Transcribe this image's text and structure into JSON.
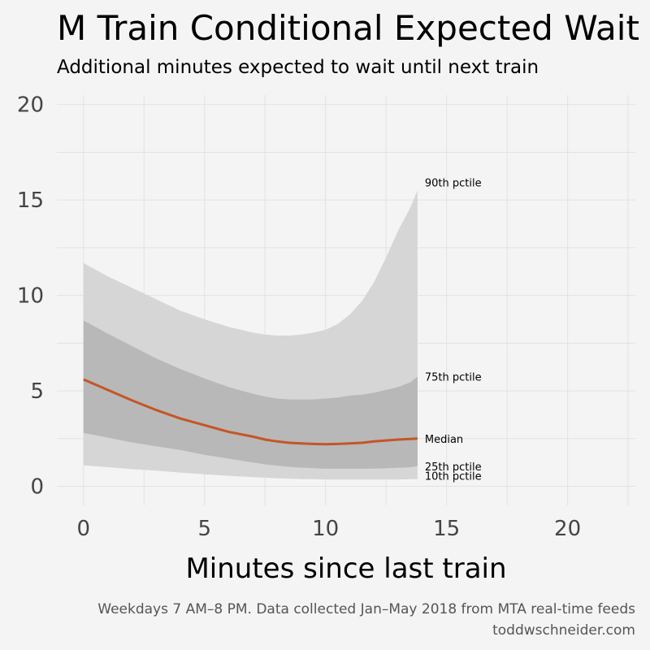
{
  "title": "M Train Conditional Expected Wait",
  "subtitle": "Additional minutes expected to wait until next train",
  "caption_line1": "Weekdays 7 AM–8 PM. Data collected Jan–May 2018 from MTA real-time feeds",
  "caption_line2": "toddwschneider.com",
  "chart_data": {
    "type": "area",
    "xlabel": "Minutes since last train",
    "ylabel": "",
    "xlim": [
      -1.1,
      22.8
    ],
    "ylim": [
      -1,
      20.5
    ],
    "x_ticks": [
      0,
      5,
      10,
      15,
      20
    ],
    "y_ticks": [
      0,
      5,
      10,
      15,
      20
    ],
    "grid": true,
    "colors": {
      "outer_band": "#d6d6d6",
      "inner_band": "#b8b8b8",
      "median": "#c55527",
      "background": "#f4f4f4",
      "grid": "#e2e2e2"
    },
    "x": [
      0,
      1,
      2,
      3,
      4,
      5,
      6,
      7,
      7.5,
      8,
      8.5,
      9,
      9.5,
      10,
      10.5,
      11,
      11.5,
      12,
      12.5,
      13,
      13.5,
      13.8
    ],
    "series": [
      {
        "name": "90th pctile",
        "values": [
          11.7,
          11.0,
          10.4,
          9.8,
          9.2,
          8.75,
          8.35,
          8.05,
          7.95,
          7.9,
          7.9,
          7.95,
          8.05,
          8.2,
          8.5,
          9.0,
          9.7,
          10.7,
          12.0,
          13.4,
          14.6,
          15.5
        ]
      },
      {
        "name": "75th pctile",
        "values": [
          8.7,
          8.0,
          7.35,
          6.7,
          6.15,
          5.65,
          5.2,
          4.85,
          4.7,
          4.6,
          4.55,
          4.55,
          4.55,
          4.6,
          4.65,
          4.75,
          4.8,
          4.9,
          5.05,
          5.2,
          5.45,
          5.75
        ]
      },
      {
        "name": "Median",
        "values": [
          5.6,
          5.05,
          4.5,
          4.0,
          3.55,
          3.2,
          2.85,
          2.6,
          2.45,
          2.35,
          2.28,
          2.25,
          2.22,
          2.2,
          2.22,
          2.25,
          2.28,
          2.35,
          2.4,
          2.45,
          2.48,
          2.5
        ]
      },
      {
        "name": "25th pctile",
        "values": [
          2.8,
          2.55,
          2.3,
          2.1,
          1.9,
          1.65,
          1.45,
          1.25,
          1.15,
          1.08,
          1.02,
          0.98,
          0.95,
          0.92,
          0.92,
          0.92,
          0.92,
          0.93,
          0.95,
          0.97,
          1.0,
          1.05
        ]
      },
      {
        "name": "10th pctile",
        "values": [
          1.1,
          1.0,
          0.9,
          0.82,
          0.72,
          0.63,
          0.55,
          0.48,
          0.45,
          0.42,
          0.4,
          0.38,
          0.37,
          0.36,
          0.35,
          0.35,
          0.35,
          0.35,
          0.35,
          0.36,
          0.37,
          0.38
        ]
      }
    ]
  }
}
